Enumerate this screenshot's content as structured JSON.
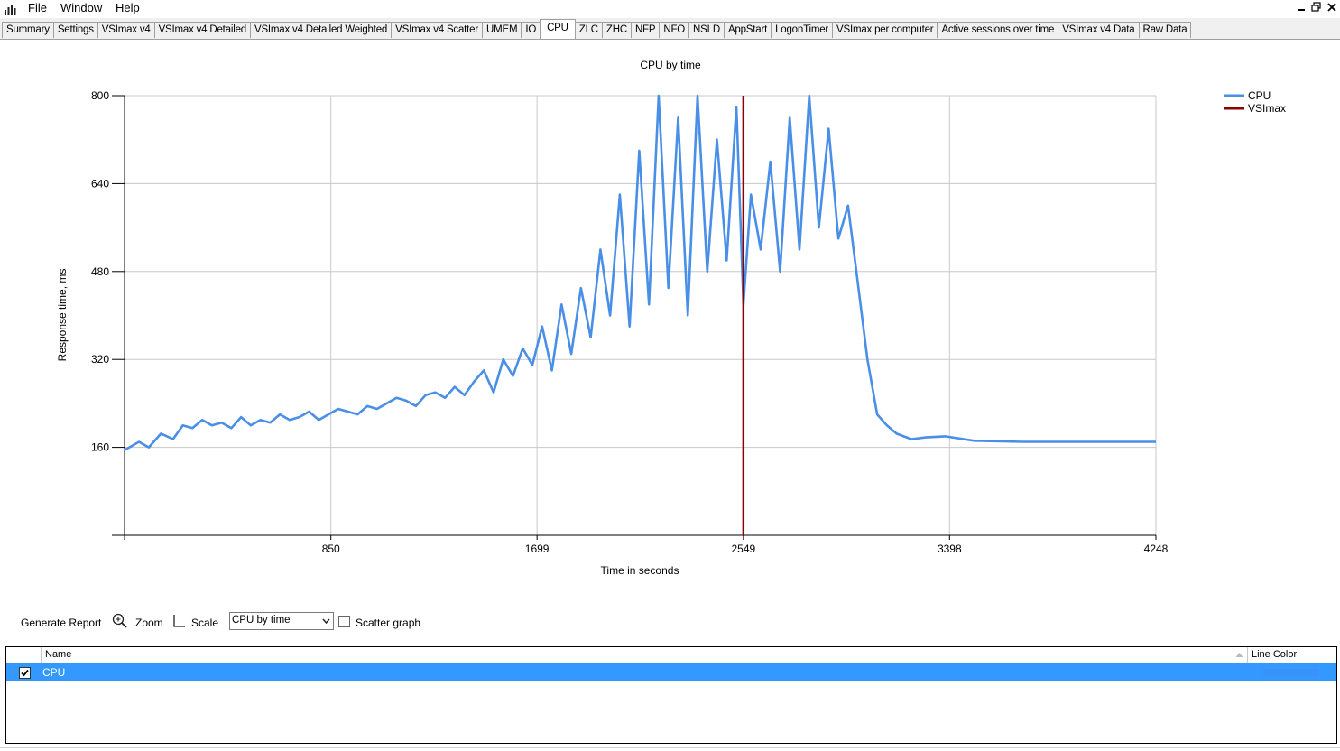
{
  "menu": {
    "items": [
      "File",
      "Window",
      "Help"
    ],
    "icons": {
      "app": "bar-chart-icon",
      "restore": "restore-window-icon",
      "close": "close-icon",
      "minimize": "minimize-icon"
    }
  },
  "tabs": [
    "Summary",
    "Settings",
    "VSImax v4",
    "VSImax v4 Detailed",
    "VSImax v4 Detailed Weighted",
    "VSImax v4 Scatter",
    "UMEM",
    "IO",
    "CPU",
    "ZLC",
    "ZHC",
    "NFP",
    "NFO",
    "NSLD",
    "AppStart",
    "LogonTimer",
    "VSImax per computer",
    "Active sessions over time",
    "VSImax v4 Data",
    "Raw Data"
  ],
  "active_tab": "CPU",
  "chart_data": {
    "type": "line",
    "title": "CPU by time",
    "xlabel": "Time in seconds",
    "ylabel": "Response time, ms",
    "xlim": [
      0,
      4248
    ],
    "ylim": [
      0,
      800
    ],
    "x_ticks": [
      "850",
      "1699",
      "2549",
      "3398",
      "4248"
    ],
    "x_tick_values": [
      850,
      1699,
      2549,
      3398,
      4248
    ],
    "y_ticks": [
      "160",
      "320",
      "480",
      "640",
      "800"
    ],
    "y_tick_values": [
      160,
      320,
      480,
      640,
      800
    ],
    "grid": true,
    "legend_position": "top-right",
    "colors": {
      "CPU": "#4a8fe7",
      "VSImax": "#8b0000"
    },
    "series": [
      {
        "name": "CPU",
        "x": [
          0,
          60,
          100,
          150,
          200,
          240,
          280,
          320,
          360,
          400,
          440,
          480,
          520,
          560,
          600,
          640,
          680,
          720,
          760,
          800,
          840,
          880,
          920,
          960,
          1000,
          1040,
          1080,
          1120,
          1160,
          1200,
          1240,
          1280,
          1320,
          1360,
          1400,
          1440,
          1480,
          1520,
          1560,
          1600,
          1640,
          1680,
          1720,
          1760,
          1800,
          1840,
          1880,
          1920,
          1960,
          2000,
          2040,
          2080,
          2120,
          2160,
          2200,
          2240,
          2280,
          2320,
          2360,
          2400,
          2440,
          2480,
          2520,
          2549,
          2580,
          2620,
          2660,
          2700,
          2740,
          2780,
          2820,
          2860,
          2900,
          2940,
          2980,
          3020,
          3060,
          3100,
          3140,
          3180,
          3240,
          3300,
          3380,
          3500,
          3700,
          3900,
          4100,
          4248
        ],
        "y": [
          155,
          170,
          160,
          185,
          175,
          200,
          195,
          210,
          200,
          205,
          195,
          215,
          200,
          210,
          205,
          220,
          210,
          215,
          225,
          210,
          220,
          230,
          225,
          220,
          235,
          230,
          240,
          250,
          245,
          235,
          255,
          260,
          250,
          270,
          255,
          280,
          300,
          260,
          320,
          290,
          340,
          310,
          380,
          300,
          420,
          330,
          450,
          360,
          520,
          400,
          620,
          380,
          700,
          420,
          800,
          450,
          760,
          400,
          800,
          480,
          720,
          500,
          780,
          420,
          620,
          520,
          680,
          480,
          760,
          520,
          800,
          560,
          740,
          540,
          600,
          460,
          320,
          220,
          200,
          185,
          175,
          178,
          180,
          172,
          170,
          170,
          170,
          170
        ]
      },
      {
        "name": "VSImax",
        "x": [
          2549,
          2549
        ],
        "y": [
          0,
          800
        ]
      }
    ]
  },
  "controls": {
    "generate_report": "Generate Report",
    "zoom": "Zoom",
    "scale": "Scale",
    "chart_select": "CPU by time",
    "scatter_graph": "Scatter graph",
    "scatter_checked": false
  },
  "grid": {
    "headers": [
      "Name",
      "Line Color"
    ],
    "rows": [
      {
        "name": "CPU",
        "checked": true,
        "color": "#4a8fe7"
      }
    ]
  }
}
